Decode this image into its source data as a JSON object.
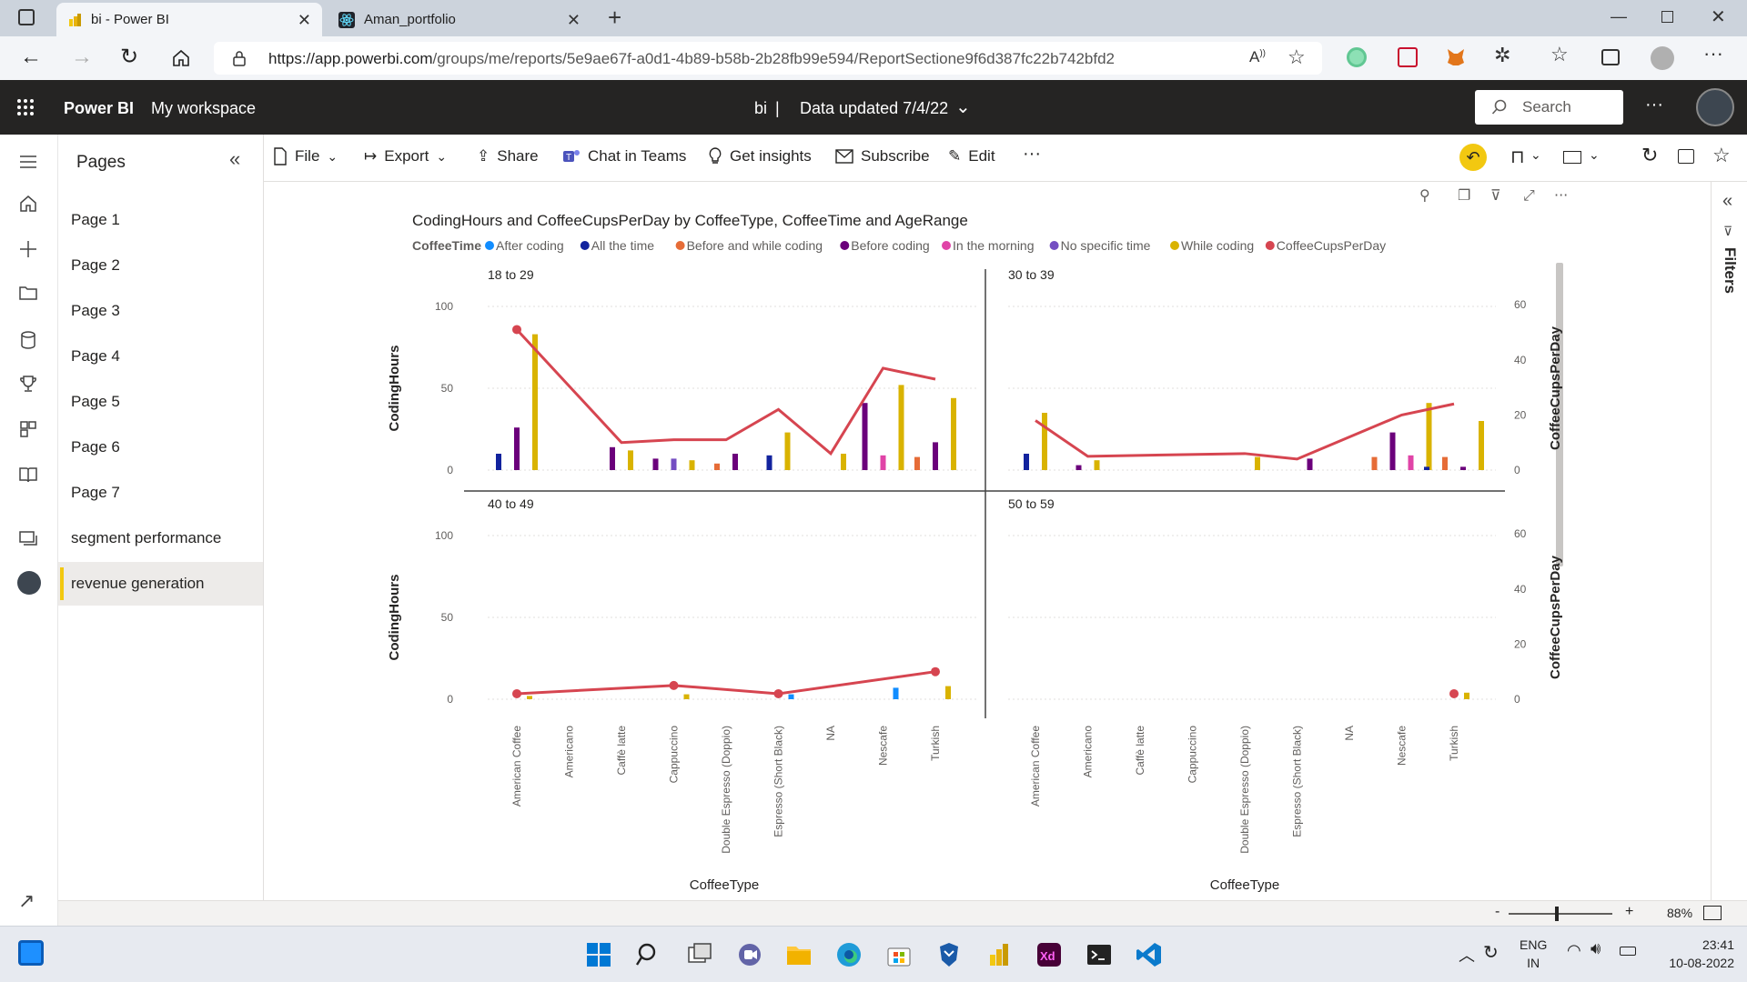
{
  "browser": {
    "tabs": [
      {
        "title": "bi - Power BI",
        "active": true
      },
      {
        "title": "Aman_portfolio",
        "active": false
      }
    ],
    "url_host": "https://app.powerbi.com",
    "url_path": "/groups/me/reports/5e9ae67f-a0d1-4b89-b58b-2b28fb99e594/ReportSectione9f6d387fc22b742bfd2"
  },
  "header": {
    "brand": "Power BI",
    "workspace": "My workspace",
    "report_name": "bi",
    "separator": "|",
    "data_updated": "Data updated 7/4/22",
    "search_placeholder": "Search",
    "more": "···"
  },
  "pages_pane": {
    "title": "Pages",
    "items": [
      {
        "label": "Page 1",
        "active": false
      },
      {
        "label": "Page 2",
        "active": false
      },
      {
        "label": "Page 3",
        "active": false
      },
      {
        "label": "Page 4",
        "active": false
      },
      {
        "label": "Page 5",
        "active": false
      },
      {
        "label": "Page 6",
        "active": false
      },
      {
        "label": "Page 7",
        "active": false
      },
      {
        "label": "segment performance",
        "active": false
      },
      {
        "label": "revenue generation",
        "active": true
      }
    ]
  },
  "actionbar": {
    "file": "File",
    "export": "Export",
    "share": "Share",
    "chat_in_teams": "Chat in Teams",
    "get_insights": "Get insights",
    "subscribe": "Subscribe",
    "edit": "Edit",
    "more": "···"
  },
  "filters_pane": {
    "label": "Filters"
  },
  "status": {
    "zoom": "88%",
    "minus": "-",
    "plus": "+"
  },
  "taskbar": {
    "lang_top": "ENG",
    "lang_bottom": "IN",
    "time": "23:41",
    "date": "10-08-2022"
  },
  "colors": {
    "After coding": "#118dff",
    "All the time": "#12239e",
    "Before and while coding": "#e66c37",
    "Before coding": "#6b007b",
    "In the morning": "#e044a7",
    "No specific time": "#744ec2",
    "While coding": "#d9b300",
    "CoffeeCupsPerDay": "#d64550"
  },
  "chart_data": {
    "type": "bar",
    "title": "CodingHours and CoffeeCupsPerDay by CoffeeType, CoffeeTime and AgeRange",
    "legend_title": "CoffeeTime",
    "legend": [
      "After coding",
      "All the time",
      "Before and while coding",
      "Before coding",
      "In the morning",
      "No specific time",
      "While coding",
      "CoffeeCupsPerDay"
    ],
    "xlabel": "CoffeeType",
    "ylabel": "CodingHours",
    "y2label": "CoffeeCupsPerDay",
    "ylim": [
      0,
      100
    ],
    "y2lim": [
      0,
      60
    ],
    "y_ticks": [
      "100",
      "50",
      "0"
    ],
    "y2_ticks": [
      "60",
      "40",
      "20",
      "0"
    ],
    "categories": [
      "American Coffee",
      "Americano",
      "Caffè latte",
      "Cappuccino",
      "Double Espresso (Doppio)",
      "Espresso (Short Black)",
      "NA",
      "Nescafe",
      "Turkish"
    ],
    "panels": [
      {
        "age_range": "18 to 29",
        "bars": [
          {
            "category": "American Coffee",
            "series": "All the time",
            "value": 10
          },
          {
            "category": "American Coffee",
            "series": "Before coding",
            "value": 26
          },
          {
            "category": "American Coffee",
            "series": "While coding",
            "value": 83
          },
          {
            "category": "Caffè latte",
            "series": "Before coding",
            "value": 14
          },
          {
            "category": "Caffè latte",
            "series": "While coding",
            "value": 12
          },
          {
            "category": "Cappuccino",
            "series": "Before coding",
            "value": 7
          },
          {
            "category": "Cappuccino",
            "series": "No specific time",
            "value": 7
          },
          {
            "category": "Cappuccino",
            "series": "While coding",
            "value": 6
          },
          {
            "category": "Double Espresso (Doppio)",
            "series": "Before and while coding",
            "value": 4
          },
          {
            "category": "Double Espresso (Doppio)",
            "series": "Before coding",
            "value": 10
          },
          {
            "category": "Espresso (Short Black)",
            "series": "All the time",
            "value": 9
          },
          {
            "category": "Espresso (Short Black)",
            "series": "While coding",
            "value": 23
          },
          {
            "category": "NA",
            "series": "While coding",
            "value": 10
          },
          {
            "category": "Nescafe",
            "series": "Before coding",
            "value": 41
          },
          {
            "category": "Nescafe",
            "series": "In the morning",
            "value": 9
          },
          {
            "category": "Nescafe",
            "series": "While coding",
            "value": 52
          },
          {
            "category": "Turkish",
            "series": "Before and while coding",
            "value": 8
          },
          {
            "category": "Turkish",
            "series": "Before coding",
            "value": 17
          },
          {
            "category": "Turkish",
            "series": "While coding",
            "value": 44
          }
        ],
        "line": [
          {
            "category": "American Coffee",
            "value": 51
          },
          {
            "category": "Caffè latte",
            "value": 10
          },
          {
            "category": "Cappuccino",
            "value": 11
          },
          {
            "category": "Double Espresso (Doppio)",
            "value": 11
          },
          {
            "category": "Espresso (Short Black)",
            "value": 22
          },
          {
            "category": "NA",
            "value": 6
          },
          {
            "category": "Nescafe",
            "value": 37
          },
          {
            "category": "Turkish",
            "value": 33
          }
        ]
      },
      {
        "age_range": "30 to 39",
        "bars": [
          {
            "category": "American Coffee",
            "series": "All the time",
            "value": 10
          },
          {
            "category": "American Coffee",
            "series": "While coding",
            "value": 35
          },
          {
            "category": "Americano",
            "series": "Before coding",
            "value": 3
          },
          {
            "category": "Americano",
            "series": "While coding",
            "value": 6
          },
          {
            "category": "Double Espresso (Doppio)",
            "series": "While coding",
            "value": 8
          },
          {
            "category": "Espresso (Short Black)",
            "series": "Before coding",
            "value": 7
          },
          {
            "category": "Nescafe",
            "series": "Before and while coding",
            "value": 8
          },
          {
            "category": "Nescafe",
            "series": "Before coding",
            "value": 23
          },
          {
            "category": "Nescafe",
            "series": "In the morning",
            "value": 9
          },
          {
            "category": "Nescafe",
            "series": "While coding",
            "value": 41
          },
          {
            "category": "Turkish",
            "series": "All the time",
            "value": 2
          },
          {
            "category": "Turkish",
            "series": "Before and while coding",
            "value": 8
          },
          {
            "category": "Turkish",
            "series": "Before coding",
            "value": 2
          },
          {
            "category": "Turkish",
            "series": "While coding",
            "value": 30
          }
        ],
        "line": [
          {
            "category": "American Coffee",
            "value": 18
          },
          {
            "category": "Americano",
            "value": 5
          },
          {
            "category": "Double Espresso (Doppio)",
            "value": 6
          },
          {
            "category": "Espresso (Short Black)",
            "value": 4
          },
          {
            "category": "Nescafe",
            "value": 20
          },
          {
            "category": "Turkish",
            "value": 24
          }
        ]
      },
      {
        "age_range": "40 to 49",
        "bars": [
          {
            "category": "American Coffee",
            "series": "While coding",
            "value": 2
          },
          {
            "category": "Cappuccino",
            "series": "While coding",
            "value": 3
          },
          {
            "category": "Espresso (Short Black)",
            "series": "After coding",
            "value": 3
          },
          {
            "category": "Nescafe",
            "series": "After coding",
            "value": 7
          },
          {
            "category": "Turkish",
            "series": "While coding",
            "value": 8
          }
        ],
        "line": [
          {
            "category": "American Coffee",
            "value": 2
          },
          {
            "category": "Cappuccino",
            "value": 5
          },
          {
            "category": "Espresso (Short Black)",
            "value": 2
          },
          {
            "category": "Turkish",
            "value": 10
          }
        ]
      },
      {
        "age_range": "50 to 59",
        "bars": [
          {
            "category": "Turkish",
            "series": "While coding",
            "value": 4
          }
        ],
        "line": [
          {
            "category": "Turkish",
            "value": 2
          }
        ]
      }
    ]
  }
}
